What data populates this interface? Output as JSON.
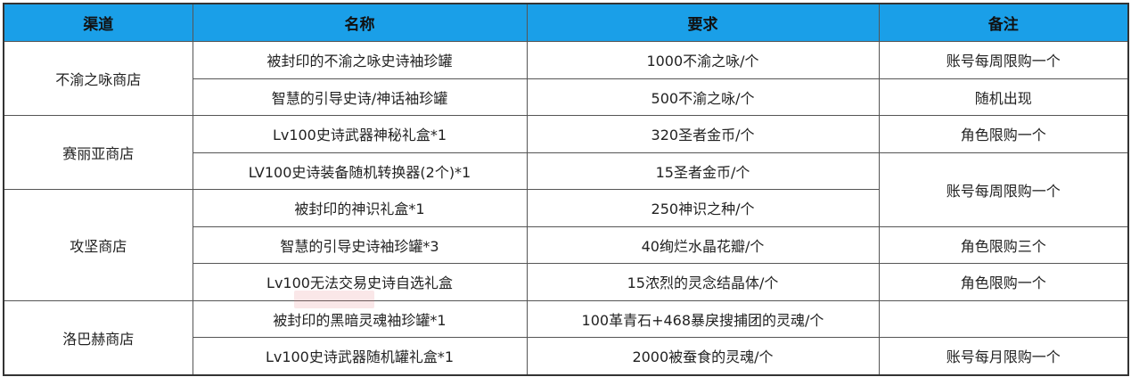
{
  "headers": [
    "渠道",
    "名称",
    "要求",
    "备注"
  ],
  "colors": {
    "header_bg": "#1a9fe8",
    "border": "#555555"
  },
  "channels": [
    "不渝之咏商店",
    "赛丽亚商店",
    "攻坚商店",
    "洛巴赫商店"
  ],
  "rows": [
    {
      "name": "被封印的不渝之咏史诗袖珍罐",
      "requirement": "1000不渝之咏/个",
      "note": "账号每周限购一个"
    },
    {
      "name": "智慧的引导史诗/神话袖珍罐",
      "requirement": "500不渝之咏/个",
      "note": "随机出现"
    },
    {
      "name": "Lv100史诗武器神秘礼盒*1",
      "requirement": "320圣者金币/个",
      "note": "角色限购一个"
    },
    {
      "name": "LV100史诗装备随机转换器(2个)*1",
      "requirement": "15圣者金币/个",
      "note": "账号每周限购一个"
    },
    {
      "name": "被封印的神识礼盒*1",
      "requirement": "250神识之种/个",
      "note": ""
    },
    {
      "name": "智慧的引导史诗袖珍罐*3",
      "requirement": "40绚烂水晶花瓣/个",
      "note": "角色限购三个"
    },
    {
      "name": "Lv100无法交易史诗自选礼盒",
      "requirement": "15浓烈的灵念结晶体/个",
      "note": "角色限购一个"
    },
    {
      "name": "被封印的黑暗灵魂袖珍罐*1",
      "requirement": "100革青石+468暴戾搜捕团的灵魂/个",
      "note": ""
    },
    {
      "name": "Lv100史诗武器随机罐礼盒*1",
      "requirement": "2000被蚕食的灵魂/个",
      "note": "账号每月限购一个"
    }
  ]
}
